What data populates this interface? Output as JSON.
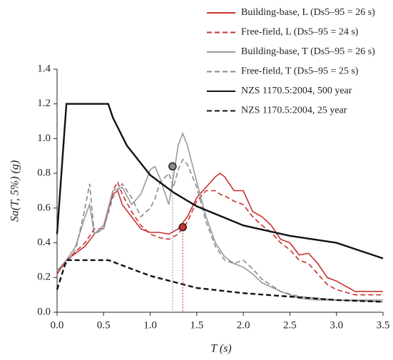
{
  "chart_data": {
    "type": "line",
    "x_label": "T (s)",
    "y_label": "Sa(T, 5%) (g)",
    "xlim": [
      0,
      3.5
    ],
    "ylim": [
      0,
      1.4
    ],
    "xticks": [
      {
        "value": 0,
        "label": "0.0"
      },
      0.5,
      {
        "value": 1,
        "label": "1.0"
      },
      1.5,
      {
        "value": 2,
        "label": "2.0"
      },
      2.5,
      {
        "value": 3,
        "label": "3.0"
      },
      3.5
    ],
    "yticks": [
      {
        "value": 0,
        "label": "0.0"
      },
      0.2,
      0.4,
      0.6,
      0.8,
      {
        "value": 1,
        "label": "1.0"
      },
      1.2,
      1.4
    ],
    "grid": false,
    "legend": "top-right",
    "series": [
      {
        "name": "Building-base, L (Ds5–95 = 26 s)",
        "color": "#c8312f",
        "dashed": false,
        "x": [
          0,
          0.1,
          0.2,
          0.3,
          0.4,
          0.5,
          0.6,
          0.65,
          0.7,
          0.8,
          0.9,
          1.0,
          1.1,
          1.2,
          1.3,
          1.4,
          1.5,
          1.6,
          1.7,
          1.75,
          1.8,
          1.9,
          2.0,
          2.1,
          2.2,
          2.3,
          2.4,
          2.5,
          2.6,
          2.7,
          2.8,
          2.9,
          3.0,
          3.2,
          3.5
        ],
        "values": [
          0.22,
          0.3,
          0.34,
          0.38,
          0.45,
          0.5,
          0.68,
          0.7,
          0.62,
          0.55,
          0.48,
          0.46,
          0.46,
          0.45,
          0.48,
          0.55,
          0.66,
          0.72,
          0.78,
          0.8,
          0.78,
          0.7,
          0.7,
          0.58,
          0.55,
          0.5,
          0.42,
          0.4,
          0.33,
          0.34,
          0.28,
          0.2,
          0.18,
          0.12,
          0.12
        ]
      },
      {
        "name": "Free-field, L (Ds5–95 = 24 s)",
        "color": "#c8312f",
        "dashed": true,
        "x": [
          0,
          0.1,
          0.2,
          0.3,
          0.4,
          0.5,
          0.6,
          0.65,
          0.7,
          0.8,
          0.9,
          1.0,
          1.1,
          1.2,
          1.3,
          1.4,
          1.5,
          1.6,
          1.7,
          1.75,
          1.8,
          1.9,
          2.0,
          2.1,
          2.2,
          2.3,
          2.4,
          2.5,
          2.6,
          2.7,
          2.8,
          2.9,
          3.0,
          3.2,
          3.5
        ],
        "values": [
          0.22,
          0.3,
          0.35,
          0.4,
          0.48,
          0.48,
          0.7,
          0.75,
          0.68,
          0.58,
          0.5,
          0.45,
          0.43,
          0.42,
          0.45,
          0.52,
          0.64,
          0.7,
          0.7,
          0.68,
          0.67,
          0.64,
          0.62,
          0.55,
          0.5,
          0.46,
          0.4,
          0.36,
          0.3,
          0.28,
          0.22,
          0.16,
          0.13,
          0.1,
          0.1
        ]
      },
      {
        "name": "Building-base, T (Ds5–95 = 26 s)",
        "color": "#9a9a9a",
        "dashed": false,
        "x": [
          0,
          0.1,
          0.2,
          0.3,
          0.35,
          0.4,
          0.5,
          0.6,
          0.7,
          0.8,
          0.9,
          1.0,
          1.05,
          1.1,
          1.2,
          1.25,
          1.3,
          1.35,
          1.4,
          1.5,
          1.6,
          1.7,
          1.8,
          1.9,
          2.0,
          2.1,
          2.2,
          2.4,
          2.6,
          2.8,
          3.0,
          3.5
        ],
        "values": [
          0.24,
          0.3,
          0.38,
          0.55,
          0.62,
          0.45,
          0.5,
          0.7,
          0.72,
          0.62,
          0.68,
          0.82,
          0.84,
          0.78,
          0.62,
          0.78,
          0.96,
          1.03,
          0.96,
          0.75,
          0.55,
          0.4,
          0.32,
          0.28,
          0.26,
          0.22,
          0.17,
          0.12,
          0.08,
          0.07,
          0.07,
          0.07
        ]
      },
      {
        "name": "Free-field, T (Ds5–95 = 25 s)",
        "color": "#8a8a8a",
        "dashed": true,
        "x": [
          0,
          0.1,
          0.2,
          0.3,
          0.35,
          0.4,
          0.5,
          0.6,
          0.7,
          0.8,
          0.9,
          1.0,
          1.05,
          1.1,
          1.2,
          1.25,
          1.3,
          1.35,
          1.4,
          1.5,
          1.6,
          1.7,
          1.8,
          1.9,
          2.0,
          2.1,
          2.2,
          2.4,
          2.6,
          2.8,
          3.0,
          3.5
        ],
        "values": [
          0.24,
          0.28,
          0.36,
          0.6,
          0.74,
          0.45,
          0.48,
          0.66,
          0.74,
          0.66,
          0.55,
          0.6,
          0.65,
          0.74,
          0.8,
          0.72,
          0.82,
          0.88,
          0.85,
          0.72,
          0.52,
          0.38,
          0.3,
          0.28,
          0.3,
          0.25,
          0.19,
          0.12,
          0.09,
          0.08,
          0.07,
          0.06
        ]
      },
      {
        "name": "NZS 1170.5:2004, 500 year",
        "color": "#111111",
        "dashed": false,
        "x": [
          0,
          0.1,
          0.55,
          0.6,
          0.75,
          1.0,
          1.25,
          1.5,
          2.0,
          2.5,
          3.0,
          3.5
        ],
        "values": [
          0.45,
          1.2,
          1.2,
          1.12,
          0.96,
          0.79,
          0.69,
          0.61,
          0.5,
          0.44,
          0.4,
          0.31
        ]
      },
      {
        "name": "NZS 1170.5:2004, 25 year",
        "color": "#111111",
        "dashed": true,
        "x": [
          0,
          0.1,
          0.55,
          0.75,
          1.0,
          1.5,
          2.0,
          2.5,
          3.0,
          3.5
        ],
        "values": [
          0.13,
          0.3,
          0.3,
          0.26,
          0.21,
          0.14,
          0.11,
          0.09,
          0.07,
          0.06
        ]
      }
    ],
    "markers": {
      "x": [
        1.24,
        1.35
      ],
      "values": [
        0.84,
        0.49
      ],
      "colors": [
        "#8a8a8a",
        "#c8312f"
      ]
    }
  }
}
